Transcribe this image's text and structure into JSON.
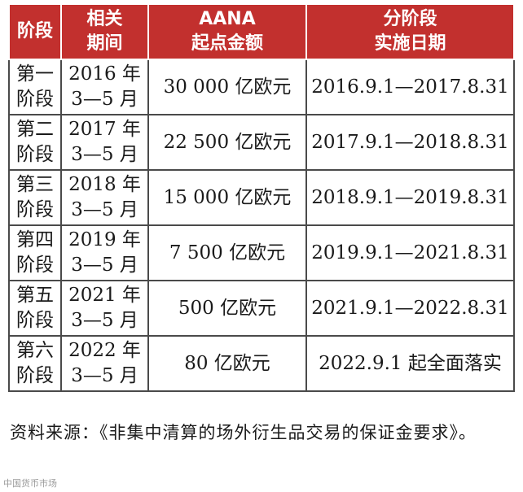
{
  "table": {
    "headers": [
      {
        "line1": "阶段",
        "line2": ""
      },
      {
        "line1": "相关",
        "line2": "期间"
      },
      {
        "line1": "AANA",
        "line2": "起点金额"
      },
      {
        "line1": "分阶段",
        "line2": "实施日期"
      }
    ],
    "rows": [
      {
        "stage1": "第一",
        "stage2": "阶段",
        "period1": "2016 年",
        "period2": "3—5 月",
        "amount": "30 000 亿欧元",
        "dates": "2016.9.1—2017.8.31"
      },
      {
        "stage1": "第二",
        "stage2": "阶段",
        "period1": "2017 年",
        "period2": "3—5 月",
        "amount": "22 500 亿欧元",
        "dates": "2017.9.1—2018.8.31"
      },
      {
        "stage1": "第三",
        "stage2": "阶段",
        "period1": "2018 年",
        "period2": "3—5 月",
        "amount": "15 000 亿欧元",
        "dates": "2018.9.1—2019.8.31"
      },
      {
        "stage1": "第四",
        "stage2": "阶段",
        "period1": "2019 年",
        "period2": "3—5 月",
        "amount": "7 500 亿欧元",
        "dates": "2019.9.1—2021.8.31"
      },
      {
        "stage1": "第五",
        "stage2": "阶段",
        "period1": "2021 年",
        "period2": "3—5 月",
        "amount": "500 亿欧元",
        "dates": "2021.9.1—2022.8.31"
      },
      {
        "stage1": "第六",
        "stage2": "阶段",
        "period1": "2022 年",
        "period2": "3—5 月",
        "amount": "80 亿欧元",
        "dates": "2022.9.1 起全面落实"
      }
    ]
  },
  "source_note": "资料来源：《非集中清算的场外衍生品交易的保证金要求》。",
  "watermark": "中国货币市场"
}
